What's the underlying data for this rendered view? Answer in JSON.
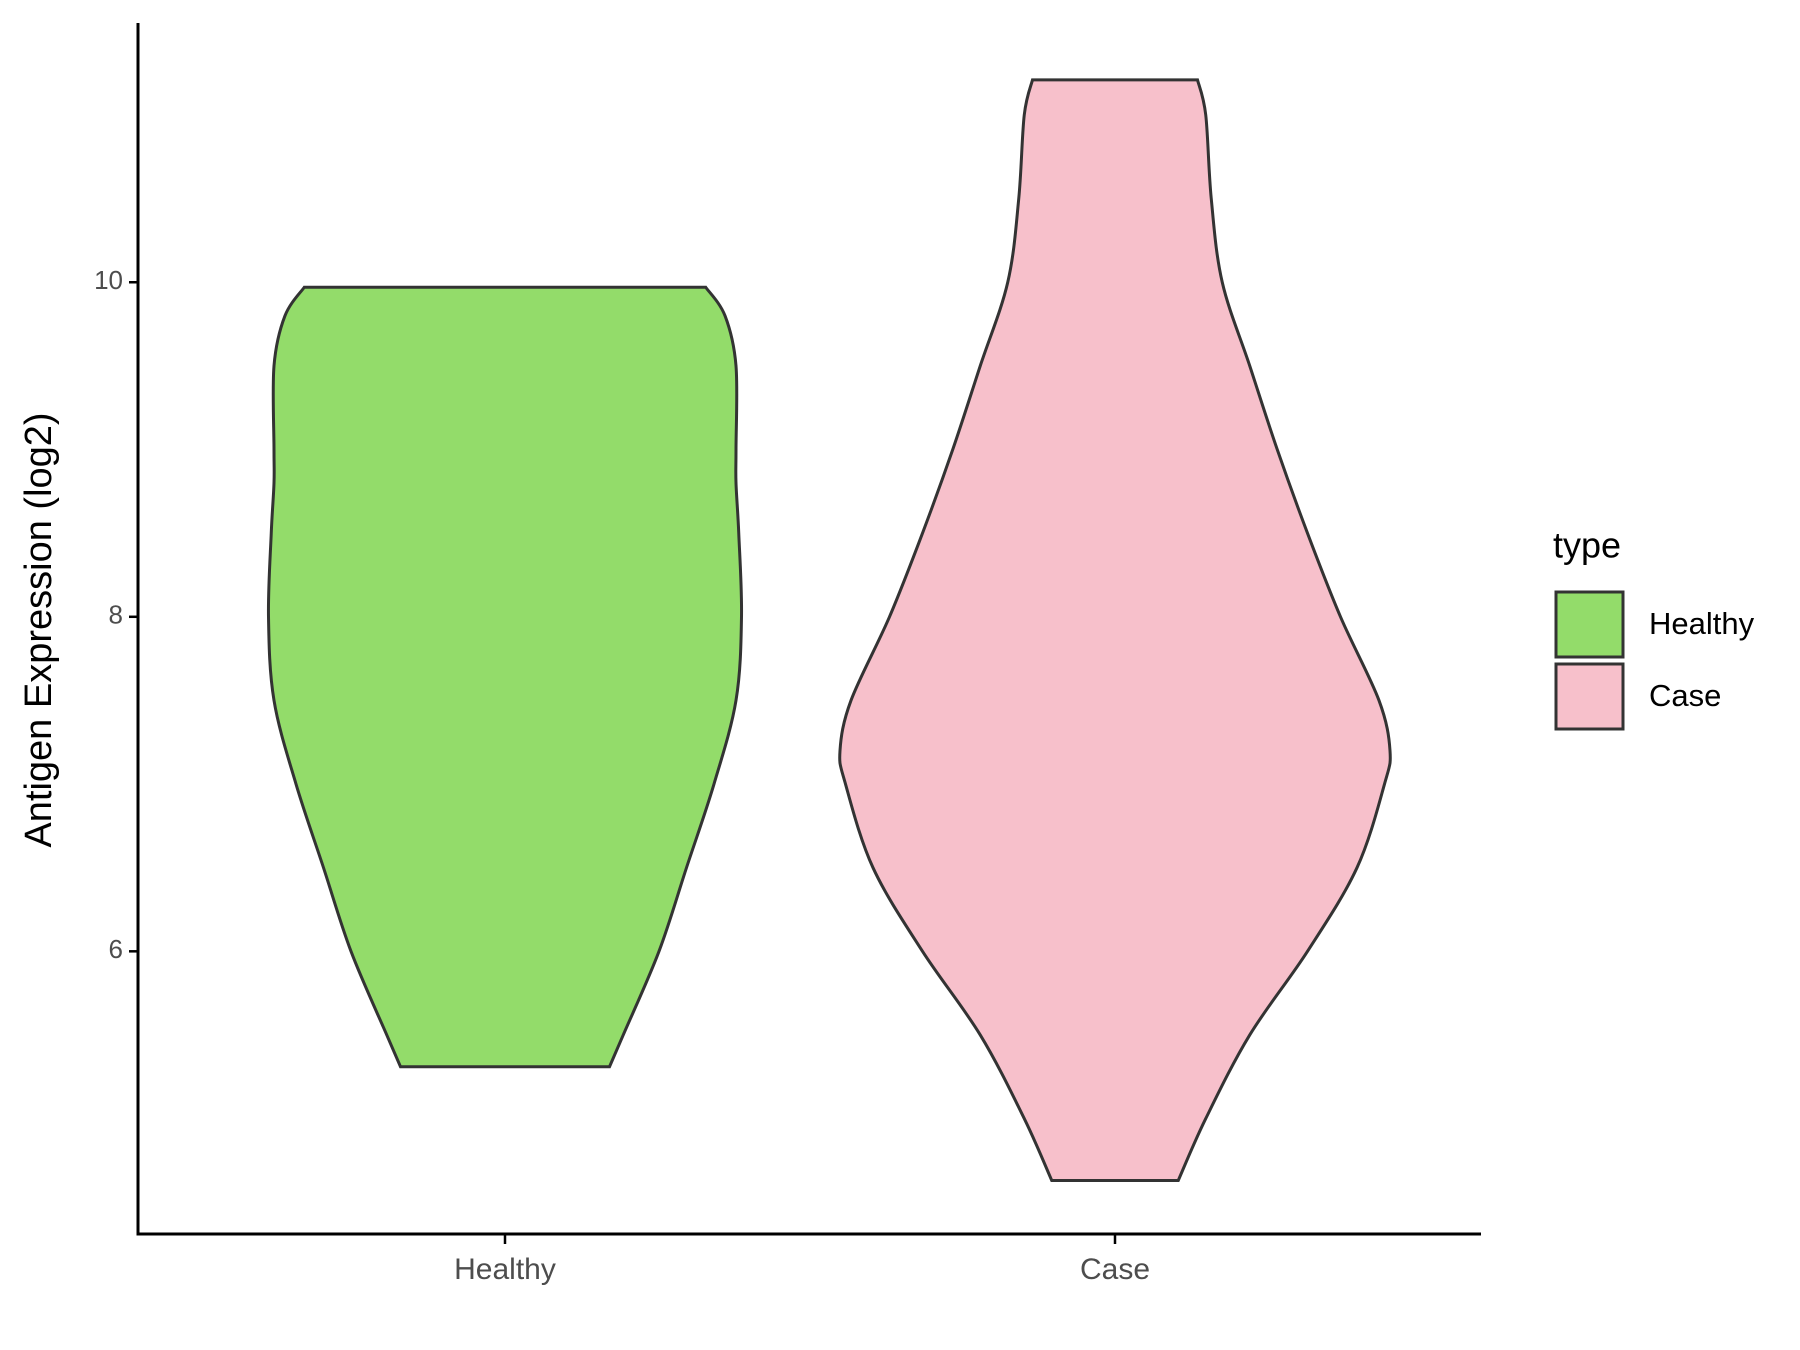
{
  "chart_data": {
    "type": "violin",
    "y_label": "Antigen Expression (log2)",
    "categories": [
      "Healthy",
      "Case"
    ],
    "legend_title": "type",
    "legend_position": "right",
    "series": [
      {
        "name": "Healthy",
        "color": "#93dc6a",
        "values": [
          5.31,
          5.5,
          6.0,
          6.5,
          7.0,
          7.5,
          8.0,
          8.5,
          8.8,
          9.0,
          9.5,
          9.8,
          9.97
        ],
        "density": [
          0.38,
          0.43,
          0.56,
          0.66,
          0.76,
          0.84,
          0.86,
          0.85,
          0.84,
          0.84,
          0.84,
          0.8,
          0.73
        ]
      },
      {
        "name": "Case",
        "color": "#f7c0cb",
        "values": [
          4.63,
          5.0,
          5.5,
          6.0,
          6.5,
          7.0,
          7.2,
          7.5,
          8.0,
          8.5,
          9.0,
          9.5,
          10.0,
          10.5,
          11.0,
          11.21
        ],
        "density": [
          0.23,
          0.33,
          0.49,
          0.7,
          0.88,
          0.98,
          1.0,
          0.96,
          0.82,
          0.7,
          0.59,
          0.49,
          0.39,
          0.35,
          0.33,
          0.3
        ]
      }
    ],
    "ylim": [
      4.31,
      11.55
    ],
    "yticks": [
      6,
      8,
      10
    ],
    "grid": false
  }
}
